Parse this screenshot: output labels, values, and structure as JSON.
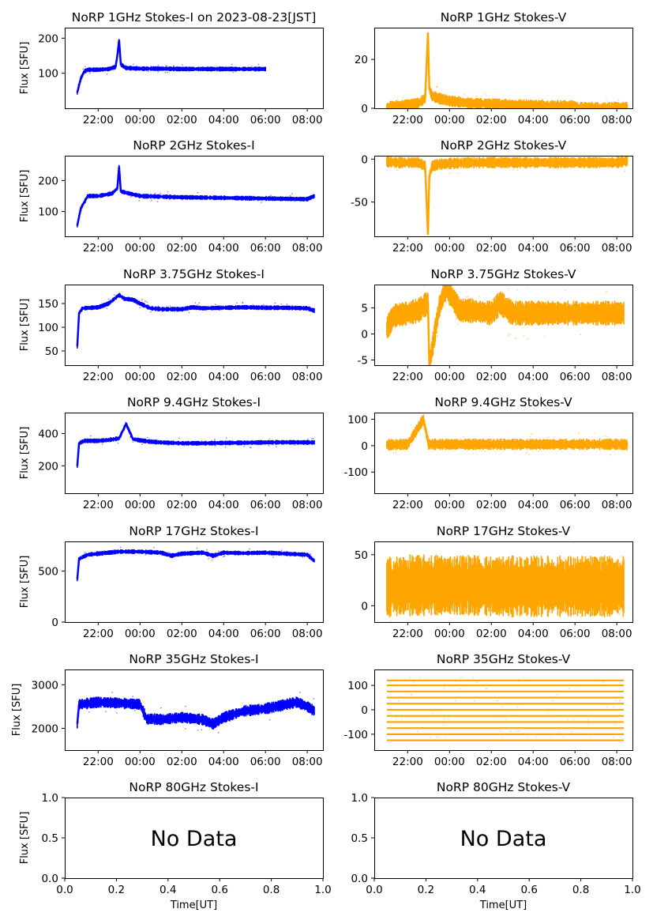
{
  "figure": {
    "time_axis_label": "Time[UT]",
    "flux_axis_label": "Flux [SFU]"
  },
  "chart_data": [
    {
      "type": "scatter",
      "title": "NoRP 1GHz Stokes-I on 2023-08-23[JST]",
      "xlabel": "",
      "ylabel": "Flux [SFU]",
      "color": "#0000ff",
      "has_data": true,
      "x_ticks": [
        "22:00",
        "00:00",
        "02:00",
        "04:00",
        "06:00",
        "08:00"
      ],
      "y_ticks": [
        100,
        200
      ],
      "ylim": [
        0,
        230
      ],
      "x_range_hours_from_2100": [
        0,
        11.7
      ],
      "series": [
        {
          "x": [
            "21:00",
            "21:10",
            "21:20",
            "21:30",
            "22:00",
            "22:30",
            "22:50",
            "22:55",
            "23:00",
            "23:05",
            "23:20",
            "23:40",
            "00:00",
            "01:00",
            "02:00",
            "03:00",
            "04:00",
            "05:00",
            "06:00"
          ],
          "values": [
            45,
            85,
            105,
            110,
            110,
            112,
            118,
            150,
            195,
            125,
            115,
            114,
            113,
            113,
            112,
            112,
            112,
            112,
            112
          ]
        }
      ]
    },
    {
      "type": "scatter",
      "title": "NoRP 1GHz Stokes-V",
      "xlabel": "",
      "ylabel": "",
      "color": "#ffa500",
      "has_data": true,
      "x_ticks": [
        "22:00",
        "00:00",
        "02:00",
        "04:00",
        "06:00",
        "08:00"
      ],
      "y_ticks": [
        0,
        20
      ],
      "ylim": [
        0,
        33
      ],
      "series": [
        {
          "x": [
            "21:00",
            "21:30",
            "22:00",
            "22:30",
            "22:50",
            "22:58",
            "23:02",
            "23:10",
            "23:30",
            "00:00",
            "00:30",
            "01:00",
            "02:00",
            "03:00",
            "04:00",
            "05:00",
            "06:00",
            "06:05",
            "07:00",
            "08:00",
            "08:30"
          ],
          "values": [
            0.5,
            1,
            1.5,
            2,
            4,
            31,
            8,
            5,
            4,
            3,
            2.5,
            2,
            1.8,
            1.5,
            1.3,
            1.1,
            1,
            0.3,
            0.3,
            0.3,
            0.3
          ]
        }
      ]
    },
    {
      "type": "scatter",
      "title": "NoRP 2GHz Stokes-I",
      "xlabel": "",
      "ylabel": "Flux [SFU]",
      "color": "#0000ff",
      "has_data": true,
      "x_ticks": [
        "22:00",
        "00:00",
        "02:00",
        "04:00",
        "06:00",
        "08:00"
      ],
      "y_ticks": [
        100,
        200
      ],
      "ylim": [
        20,
        280
      ],
      "series": [
        {
          "x": [
            "21:00",
            "21:10",
            "21:30",
            "22:00",
            "22:40",
            "22:55",
            "23:00",
            "23:05",
            "23:30",
            "00:00",
            "01:00",
            "02:00",
            "03:00",
            "04:00",
            "05:00",
            "06:00",
            "07:00",
            "08:00",
            "08:20"
          ],
          "values": [
            55,
            110,
            150,
            150,
            158,
            175,
            245,
            165,
            158,
            150,
            148,
            146,
            145,
            144,
            143,
            142,
            141,
            140,
            150
          ]
        }
      ]
    },
    {
      "type": "scatter",
      "title": "NoRP 2GHz Stokes-V",
      "xlabel": "",
      "ylabel": "",
      "color": "#ffa500",
      "has_data": true,
      "x_ticks": [
        "22:00",
        "00:00",
        "02:00",
        "04:00",
        "06:00",
        "08:00"
      ],
      "y_ticks": [
        0,
        -50
      ],
      "ylim": [
        -90,
        4
      ],
      "series": [
        {
          "x": [
            "21:00",
            "21:30",
            "22:00",
            "22:30",
            "22:50",
            "22:58",
            "23:02",
            "23:10",
            "23:30",
            "00:00",
            "01:00",
            "02:00",
            "03:00",
            "04:00",
            "05:00",
            "06:00",
            "07:00",
            "08:00",
            "08:30"
          ],
          "values": [
            -3,
            -4,
            -4,
            -4,
            -8,
            -88,
            -20,
            -8,
            -6,
            -5,
            -4,
            -4,
            -4,
            -4,
            -4,
            -4,
            -4,
            -4,
            -2
          ]
        }
      ]
    },
    {
      "type": "scatter",
      "title": "NoRP 3.75GHz Stokes-I",
      "xlabel": "",
      "ylabel": "Flux [SFU]",
      "color": "#0000ff",
      "has_data": true,
      "x_ticks": [
        "22:00",
        "00:00",
        "02:00",
        "04:00",
        "06:00",
        "08:00"
      ],
      "y_ticks": [
        50,
        100,
        150
      ],
      "ylim": [
        20,
        190
      ],
      "series": [
        {
          "x": [
            "21:00",
            "21:05",
            "21:15",
            "22:00",
            "22:30",
            "23:00",
            "23:15",
            "23:40",
            "00:00",
            "00:30",
            "01:00",
            "02:00",
            "02:30",
            "03:00",
            "04:00",
            "05:00",
            "06:00",
            "07:00",
            "08:00",
            "08:20"
          ],
          "values": [
            60,
            130,
            140,
            142,
            150,
            168,
            160,
            158,
            150,
            140,
            138,
            138,
            142,
            140,
            141,
            142,
            141,
            141,
            140,
            135
          ]
        }
      ]
    },
    {
      "type": "scatter",
      "title": "NoRP 3.75GHz Stokes-V",
      "xlabel": "",
      "ylabel": "",
      "color": "#ffa500",
      "has_data": true,
      "x_ticks": [
        "22:00",
        "00:00",
        "02:00",
        "04:00",
        "06:00",
        "08:00"
      ],
      "y_ticks": [
        -5,
        0,
        5
      ],
      "ylim": [
        -6,
        9.5
      ],
      "series": [
        {
          "x": [
            "21:00",
            "21:20",
            "22:00",
            "22:30",
            "22:58",
            "23:02",
            "23:30",
            "23:50",
            "00:30",
            "01:00",
            "02:00",
            "02:25",
            "03:00",
            "04:00",
            "05:00",
            "06:00",
            "07:00",
            "08:00",
            "08:20"
          ],
          "values": [
            1,
            3.5,
            4,
            4.5,
            6,
            -6,
            5,
            9,
            4.5,
            4.5,
            4,
            6,
            4,
            4,
            4,
            4,
            4,
            4,
            4
          ]
        }
      ]
    },
    {
      "type": "scatter",
      "title": "NoRP 9.4GHz Stokes-I",
      "xlabel": "",
      "ylabel": "Flux [SFU]",
      "color": "#0000ff",
      "has_data": true,
      "x_ticks": [
        "22:00",
        "00:00",
        "02:00",
        "04:00",
        "06:00",
        "08:00"
      ],
      "y_ticks": [
        200,
        400
      ],
      "ylim": [
        30,
        530
      ],
      "series": [
        {
          "x": [
            "21:00",
            "21:05",
            "21:20",
            "22:00",
            "22:30",
            "23:00",
            "23:20",
            "23:40",
            "00:00",
            "00:30",
            "01:00",
            "02:00",
            "03:00",
            "04:00",
            "05:00",
            "06:00",
            "07:00",
            "08:00",
            "08:20"
          ],
          "values": [
            200,
            340,
            355,
            355,
            360,
            370,
            460,
            365,
            358,
            350,
            345,
            340,
            340,
            342,
            343,
            345,
            346,
            345,
            345
          ]
        }
      ]
    },
    {
      "type": "scatter",
      "title": "NoRP 9.4GHz Stokes-V",
      "xlabel": "",
      "ylabel": "",
      "color": "#ffa500",
      "has_data": true,
      "x_ticks": [
        "22:00",
        "00:00",
        "02:00",
        "04:00",
        "06:00",
        "08:00"
      ],
      "y_ticks": [
        -100,
        0,
        100
      ],
      "ylim": [
        -180,
        125
      ],
      "series": [
        {
          "x": [
            "21:00",
            "22:00",
            "22:45",
            "23:00",
            "23:30",
            "00:00",
            "01:00",
            "02:00",
            "03:00",
            "04:00",
            "05:00",
            "06:00",
            "07:00",
            "08:00",
            "08:30"
          ],
          "values": [
            3,
            5,
            100,
            5,
            5,
            5,
            5,
            5,
            5,
            5,
            5,
            5,
            5,
            5,
            3
          ]
        }
      ]
    },
    {
      "type": "scatter",
      "title": "NoRP 17GHz Stokes-I",
      "xlabel": "",
      "ylabel": "Flux [SFU]",
      "color": "#0000ff",
      "has_data": true,
      "x_ticks": [
        "22:00",
        "00:00",
        "02:00",
        "04:00",
        "06:00",
        "08:00"
      ],
      "y_ticks": [
        0,
        500
      ],
      "ylim": [
        0,
        790
      ],
      "series": [
        {
          "x": [
            "21:00",
            "21:05",
            "21:30",
            "22:00",
            "23:00",
            "00:00",
            "01:00",
            "01:30",
            "02:00",
            "03:00",
            "03:30",
            "04:00",
            "05:00",
            "06:00",
            "07:00",
            "08:00",
            "08:20"
          ],
          "values": [
            420,
            620,
            660,
            670,
            690,
            690,
            680,
            650,
            670,
            680,
            650,
            680,
            675,
            680,
            670,
            660,
            600
          ]
        }
      ]
    },
    {
      "type": "scatter",
      "title": "NoRP 17GHz Stokes-V",
      "xlabel": "",
      "ylabel": "",
      "color": "#ffa500",
      "has_data": true,
      "x_ticks": [
        "22:00",
        "00:00",
        "02:00",
        "04:00",
        "06:00",
        "08:00"
      ],
      "y_ticks": [
        0,
        50
      ],
      "ylim": [
        -16,
        63
      ],
      "series": [
        {
          "x": [
            "21:00",
            "22:00",
            "23:00",
            "00:00",
            "01:00",
            "02:00",
            "03:00",
            "04:00",
            "05:00",
            "06:00",
            "07:00",
            "08:00",
            "08:20"
          ],
          "values": [
            18,
            20,
            20,
            20,
            20,
            19,
            19,
            19,
            19,
            19,
            19,
            19,
            19
          ]
        }
      ]
    },
    {
      "type": "scatter",
      "title": "NoRP 35GHz Stokes-I",
      "xlabel": "",
      "ylabel": "Flux [SFU]",
      "color": "#0000ff",
      "has_data": true,
      "x_ticks": [
        "22:00",
        "00:00",
        "02:00",
        "04:00",
        "06:00",
        "08:00"
      ],
      "y_ticks": [
        2000,
        3000
      ],
      "ylim": [
        1500,
        3350
      ],
      "series": [
        {
          "x": [
            "21:00",
            "21:05",
            "22:00",
            "23:00",
            "00:00",
            "00:20",
            "00:30",
            "01:00",
            "02:00",
            "03:00",
            "03:30",
            "04:00",
            "05:00",
            "06:00",
            "07:00",
            "07:30",
            "08:00",
            "08:20"
          ],
          "values": [
            2100,
            2550,
            2600,
            2580,
            2550,
            2200,
            2220,
            2200,
            2250,
            2200,
            2100,
            2250,
            2400,
            2450,
            2550,
            2600,
            2500,
            2400
          ]
        }
      ]
    },
    {
      "type": "scatter",
      "title": "NoRP 35GHz Stokes-V",
      "xlabel": "",
      "ylabel": "",
      "color": "#ffa500",
      "has_data": true,
      "x_ticks": [
        "22:00",
        "00:00",
        "02:00",
        "04:00",
        "06:00",
        "08:00"
      ],
      "y_ticks": [
        -100,
        0,
        100
      ],
      "ylim": [
        -165,
        165
      ],
      "series": [
        {
          "name": "",
          "levels": [
            -125,
            -100,
            -75,
            -50,
            -25,
            0,
            25,
            50,
            75,
            100,
            120
          ],
          "x_start": "21:00",
          "x_end": "08:20"
        }
      ]
    },
    {
      "type": "scatter",
      "title": "NoRP 80GHz Stokes-I",
      "xlabel": "Time[UT]",
      "ylabel": "Flux [SFU]",
      "has_data": false,
      "annotation": "No Data",
      "x_ticks": [
        "0.0",
        "0.2",
        "0.4",
        "0.6",
        "0.8",
        "1.0"
      ],
      "y_ticks": [
        "0.0",
        "0.5",
        "1.0"
      ],
      "xlim": [
        0,
        1
      ],
      "ylim": [
        0,
        1
      ]
    },
    {
      "type": "scatter",
      "title": "NoRP 80GHz Stokes-V",
      "xlabel": "Time[UT]",
      "ylabel": "",
      "has_data": false,
      "annotation": "No Data",
      "x_ticks": [
        "0.0",
        "0.2",
        "0.4",
        "0.6",
        "0.8",
        "1.0"
      ],
      "y_ticks": [
        "0.0",
        "0.5",
        "1.0"
      ],
      "xlim": [
        0,
        1
      ],
      "ylim": [
        0,
        1
      ]
    }
  ]
}
